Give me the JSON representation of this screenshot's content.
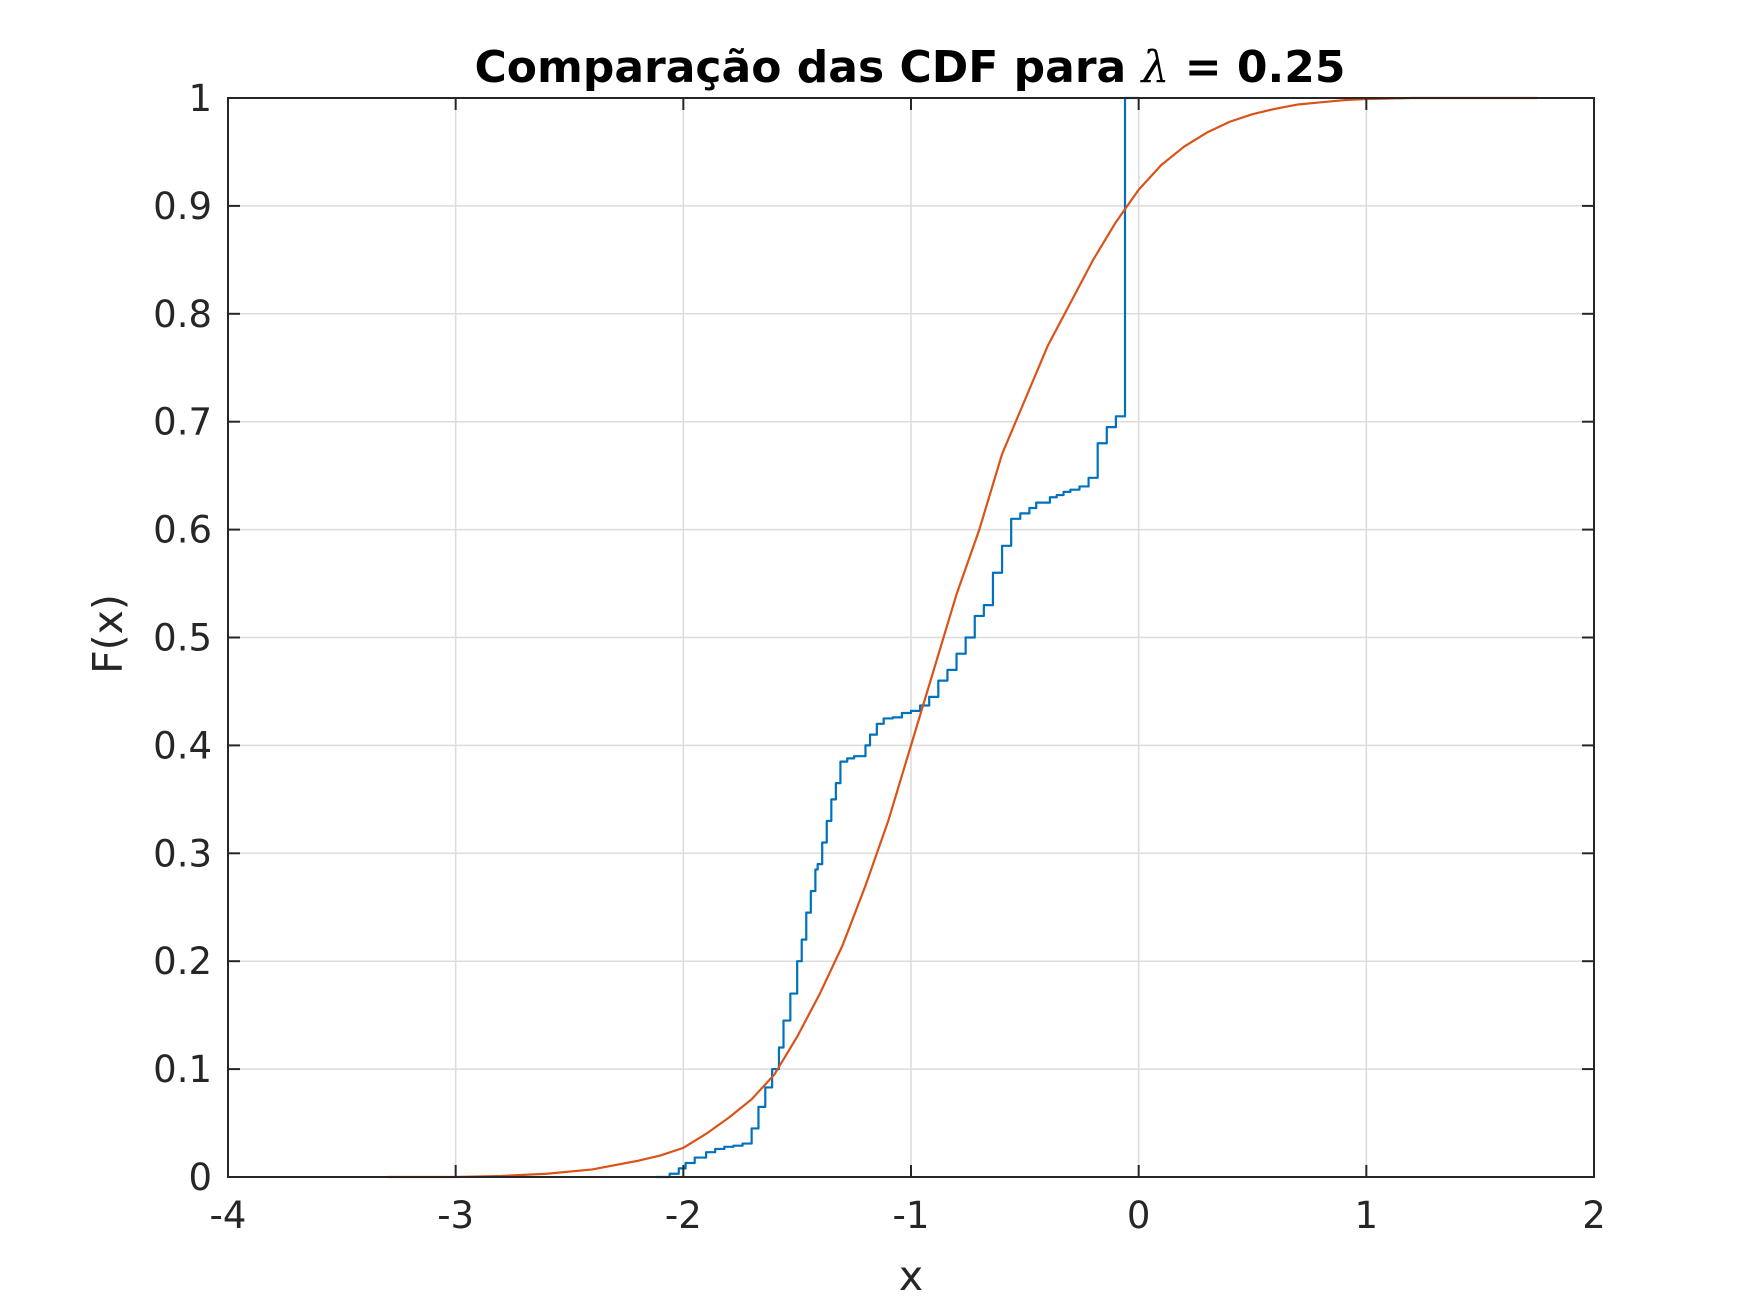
{
  "chart_data": {
    "type": "line",
    "title": "Comparação das CDF para λ = 0.25",
    "title_parts": {
      "prefix": "Comparação das CDF para ",
      "symbol": "λ",
      "suffix": " = 0.25"
    },
    "xlabel": "x",
    "ylabel": "F(x)",
    "xlim": [
      -4,
      2
    ],
    "ylim": [
      0,
      1
    ],
    "x_ticks": [
      -4,
      -3,
      -2,
      -1,
      0,
      1,
      2
    ],
    "x_tick_labels": [
      "-4",
      "-3",
      "-2",
      "-1",
      "0",
      "1",
      "2"
    ],
    "y_ticks": [
      0,
      0.1,
      0.2,
      0.3,
      0.4,
      0.5,
      0.6,
      0.7,
      0.8,
      0.9,
      1
    ],
    "y_tick_labels": [
      "0",
      "0.1",
      "0.2",
      "0.3",
      "0.4",
      "0.5",
      "0.6",
      "0.7",
      "0.8",
      "0.9",
      "1"
    ],
    "grid": true,
    "legend": "none",
    "colors": {
      "empirical": "#0072BD",
      "theoretical": "#D95319",
      "grid": "#DCDCDC",
      "axes": "#262626"
    },
    "series": [
      {
        "id": "empirical",
        "style": "step",
        "x": [
          -2.12,
          -2.06,
          -2.02,
          -1.99,
          -1.95,
          -1.9,
          -1.86,
          -1.82,
          -1.78,
          -1.74,
          -1.7,
          -1.67,
          -1.64,
          -1.61,
          -1.58,
          -1.56,
          -1.53,
          -1.5,
          -1.48,
          -1.46,
          -1.44,
          -1.42,
          -1.41,
          -1.39,
          -1.37,
          -1.35,
          -1.33,
          -1.31,
          -1.28,
          -1.25,
          -1.22,
          -1.2,
          -1.18,
          -1.15,
          -1.12,
          -1.08,
          -1.04,
          -1.0,
          -0.96,
          -0.92,
          -0.88,
          -0.84,
          -0.8,
          -0.76,
          -0.72,
          -0.68,
          -0.64,
          -0.6,
          -0.56,
          -0.52,
          -0.48,
          -0.45,
          -0.42,
          -0.39,
          -0.36,
          -0.33,
          -0.3,
          -0.26,
          -0.22,
          -0.18,
          -0.14,
          -0.1,
          -0.06,
          -0.04,
          -0.02,
          -0.005,
          0.0
        ],
        "y": [
          0.0,
          0.003,
          0.008,
          0.013,
          0.018,
          0.023,
          0.026,
          0.028,
          0.029,
          0.031,
          0.045,
          0.065,
          0.083,
          0.1,
          0.12,
          0.145,
          0.17,
          0.2,
          0.22,
          0.245,
          0.265,
          0.285,
          0.29,
          0.31,
          0.33,
          0.35,
          0.365,
          0.385,
          0.388,
          0.39,
          0.39,
          0.4,
          0.41,
          0.42,
          0.425,
          0.426,
          0.43,
          0.432,
          0.437,
          0.445,
          0.46,
          0.47,
          0.485,
          0.5,
          0.52,
          0.53,
          0.56,
          0.585,
          0.61,
          0.615,
          0.62,
          0.625,
          0.625,
          0.63,
          0.632,
          0.635,
          0.637,
          0.64,
          0.648,
          0.68,
          0.695,
          0.705,
          1.0,
          1.0,
          1.0,
          1.0,
          1.0
        ]
      },
      {
        "id": "theoretical",
        "style": "line",
        "x": [
          -3.3,
          -3.0,
          -2.8,
          -2.6,
          -2.4,
          -2.2,
          -2.1,
          -2.0,
          -1.9,
          -1.8,
          -1.7,
          -1.6,
          -1.5,
          -1.4,
          -1.3,
          -1.2,
          -1.1,
          -1.0,
          -0.9,
          -0.8,
          -0.7,
          -0.6,
          -0.5,
          -0.4,
          -0.3,
          -0.2,
          -0.1,
          0.0,
          0.1,
          0.2,
          0.3,
          0.4,
          0.5,
          0.6,
          0.7,
          0.8,
          0.9,
          1.0,
          1.1,
          1.2,
          1.4,
          1.6,
          1.75
        ],
        "y": [
          0.0,
          0.0,
          0.001,
          0.003,
          0.007,
          0.015,
          0.02,
          0.027,
          0.04,
          0.055,
          0.072,
          0.095,
          0.13,
          0.17,
          0.215,
          0.27,
          0.33,
          0.4,
          0.47,
          0.54,
          0.6,
          0.67,
          0.72,
          0.77,
          0.81,
          0.85,
          0.885,
          0.915,
          0.938,
          0.955,
          0.968,
          0.978,
          0.985,
          0.99,
          0.994,
          0.996,
          0.998,
          0.999,
          0.9995,
          1.0,
          1.0,
          1.0,
          1.0
        ]
      }
    ]
  }
}
